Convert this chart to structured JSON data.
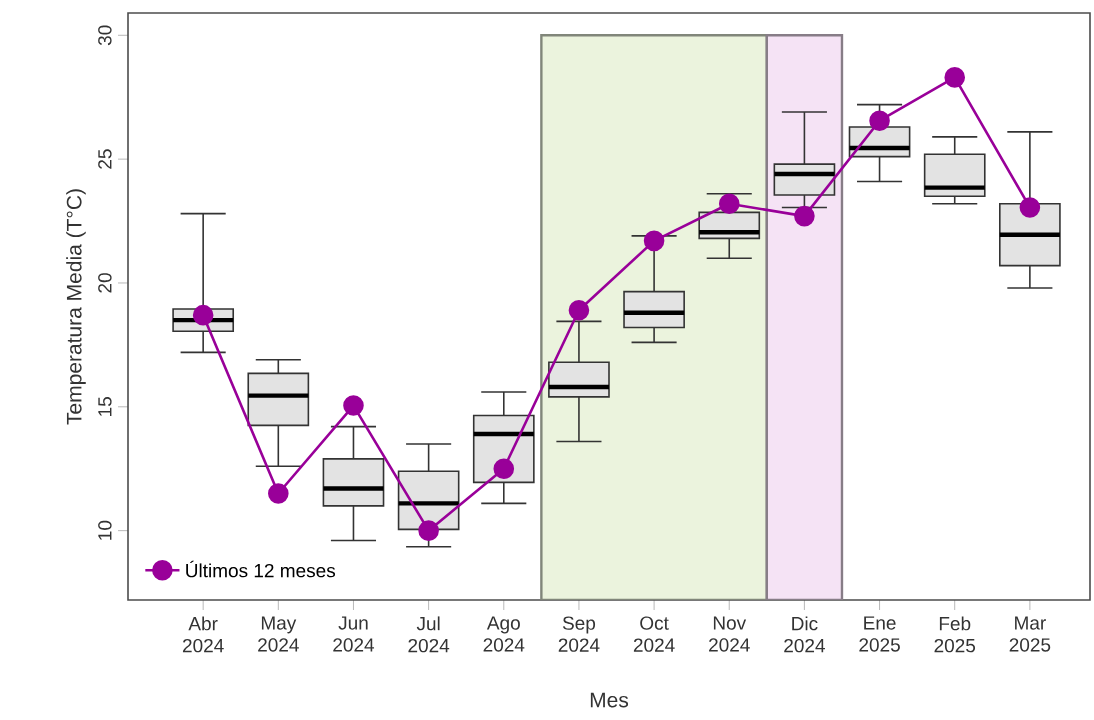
{
  "chart_data": {
    "type": "box",
    "xlabel": "Mes",
    "ylabel": "Temperatura Media (T°C)",
    "categories": [
      "Abr 2024",
      "May 2024",
      "Jun 2024",
      "Jul 2024",
      "Ago 2024",
      "Sep 2024",
      "Oct 2024",
      "Nov 2024",
      "Dic 2024",
      "Ene 2025",
      "Feb 2025",
      "Mar 2025"
    ],
    "series": [
      {
        "color": "#e3e3e3",
        "boxes": [
          {
            "low": 17.2,
            "q1": 18.05,
            "median": 18.5,
            "q3": 18.95,
            "high": 22.8
          },
          {
            "low": 12.6,
            "q1": 14.25,
            "median": 15.45,
            "q3": 16.35,
            "high": 16.9
          },
          {
            "low": 9.6,
            "q1": 11.0,
            "median": 11.7,
            "q3": 12.9,
            "high": 14.2
          },
          {
            "low": 9.35,
            "q1": 10.05,
            "median": 11.1,
            "q3": 12.4,
            "high": 13.5
          },
          {
            "low": 11.1,
            "q1": 11.95,
            "median": 13.9,
            "q3": 14.65,
            "high": 15.6
          },
          {
            "low": 13.6,
            "q1": 15.4,
            "median": 15.8,
            "q3": 16.8,
            "high": 18.45
          },
          {
            "low": 17.6,
            "q1": 18.2,
            "median": 18.8,
            "q3": 19.65,
            "high": 21.9
          },
          {
            "low": 21.0,
            "q1": 21.8,
            "median": 22.05,
            "q3": 22.85,
            "high": 23.6
          },
          {
            "low": 23.05,
            "q1": 23.55,
            "median": 24.4,
            "q3": 24.8,
            "high": 26.9
          },
          {
            "low": 24.1,
            "q1": 25.1,
            "median": 25.45,
            "q3": 26.3,
            "high": 27.2
          },
          {
            "low": 23.2,
            "q1": 23.5,
            "median": 23.85,
            "q3": 25.2,
            "high": 25.9
          },
          {
            "low": 19.8,
            "q1": 20.7,
            "median": 21.95,
            "q3": 23.2,
            "high": 26.1
          }
        ]
      },
      {
        "type": "line",
        "name": "Últimos 12 meses",
        "color": "#990099",
        "values": [
          18.7,
          11.5,
          15.05,
          10.0,
          12.5,
          18.9,
          21.7,
          23.2,
          22.7,
          26.55,
          28.3,
          23.05
        ]
      }
    ],
    "bands": [
      {
        "axis": "x",
        "from": "Sep 2024",
        "to": "Nov 2024",
        "color": "#ebf3dd"
      },
      {
        "axis": "x",
        "from": "Dic 2024",
        "to": "Dic 2024",
        "color": "#f5e3f5"
      }
    ],
    "ylim": [
      7.2,
      30.9
    ],
    "yticks": [
      10,
      15,
      20,
      25,
      30
    ],
    "marker": "circle",
    "legend": "bottom left",
    "grid": false
  }
}
